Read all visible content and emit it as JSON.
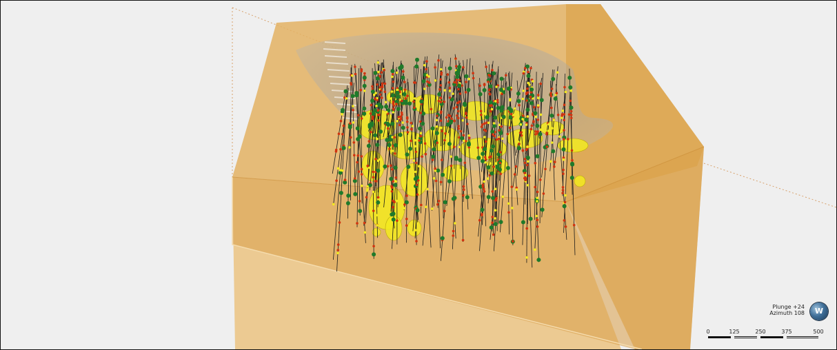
{
  "view": {
    "plunge_text": "Plunge +24",
    "azimuth_text": "Azimuth 108",
    "globe_letter": "W"
  },
  "scale_bar": {
    "ticks": [
      "0",
      "125",
      "250",
      "375",
      "500"
    ]
  },
  "colors": {
    "background": "#efefef",
    "block_model": "#e0a84e",
    "pit_shell": "#9a9a9a",
    "orebody": "#f3ea1f",
    "assay_high": "#d0330f",
    "assay_mid": "#1f7a2a",
    "drillhole": "#1a1a1a"
  },
  "icons": {
    "orientation": "globe-icon"
  }
}
